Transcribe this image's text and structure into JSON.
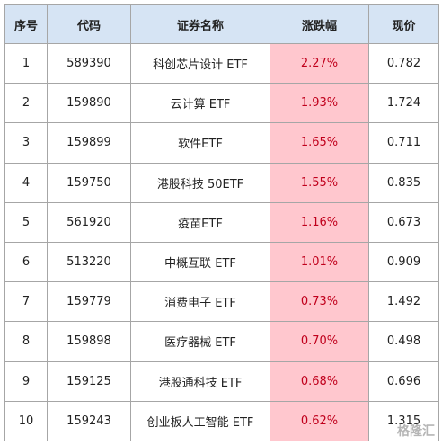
{
  "table": {
    "header": [
      "序号",
      "代码",
      "证券名称",
      "涨跌幅",
      "现价"
    ],
    "rows": [
      [
        "1",
        "589390",
        "科创芯片设计 ETF",
        "2.27%",
        "0.782"
      ],
      [
        "2",
        "159890",
        "云计算 ETF",
        "1.93%",
        "1.724"
      ],
      [
        "3",
        "159899",
        "软件ETF",
        "1.65%",
        "0.711"
      ],
      [
        "4",
        "159750",
        "港股科技 50ETF",
        "1.55%",
        "0.835"
      ],
      [
        "5",
        "561920",
        "疫苗ETF",
        "1.16%",
        "0.673"
      ],
      [
        "6",
        "513220",
        "中概互联 ETF",
        "1.01%",
        "0.909"
      ],
      [
        "7",
        "159779",
        "消费电子 ETF",
        "0.73%",
        "1.492"
      ],
      [
        "8",
        "159898",
        "医疗器械 ETF",
        "0.70%",
        "0.498"
      ],
      [
        "9",
        "159125",
        "港股通科技 ETF",
        "0.68%",
        "0.696"
      ],
      [
        "10",
        "159243",
        "创业板人工智能 ETF",
        "0.62%",
        "1.315"
      ]
    ]
  },
  "watermark": "格隆汇"
}
